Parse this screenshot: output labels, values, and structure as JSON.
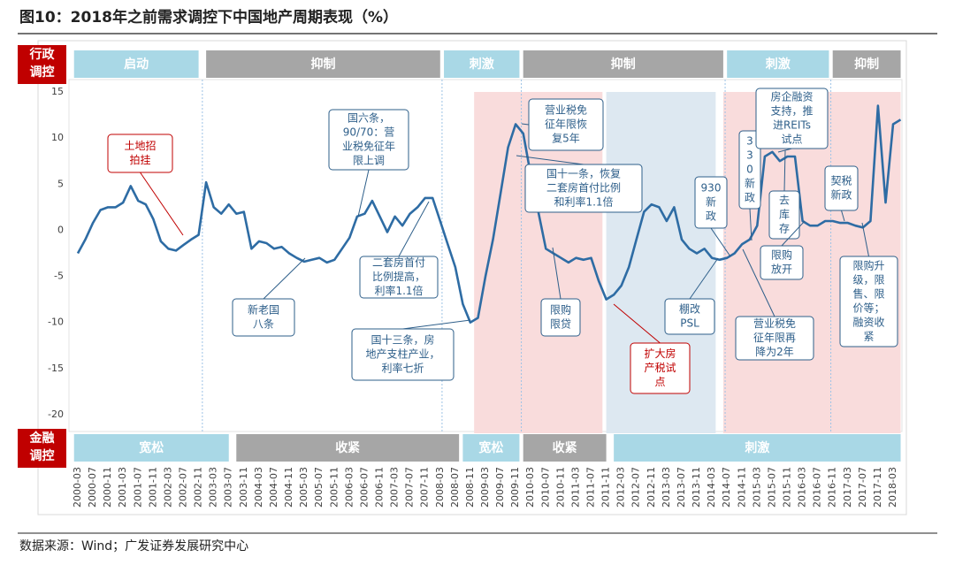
{
  "title": "图10：2018年之前需求调控下中国地产周期表现（%）",
  "source": "数据来源：Wind；广发证券发展研究中心",
  "chart_data": {
    "type": "line",
    "x": [
      "2000-03",
      "2000-05",
      "2000-07",
      "2000-09",
      "2000-11",
      "2001-01",
      "2001-03",
      "2001-05",
      "2001-07",
      "2001-09",
      "2001-11",
      "2002-01",
      "2002-03",
      "2002-05",
      "2002-07",
      "2002-09",
      "2002-11",
      "2003-01",
      "2003-03",
      "2003-05",
      "2003-07",
      "2003-09",
      "2003-11",
      "2004-01",
      "2004-03",
      "2004-05",
      "2004-07",
      "2004-09",
      "2004-11",
      "2005-01",
      "2005-03",
      "2005-05",
      "2005-07",
      "2005-09",
      "2005-11",
      "2006-01",
      "2006-03",
      "2006-05",
      "2006-07",
      "2006-09",
      "2006-11",
      "2007-01",
      "2007-03",
      "2007-05",
      "2007-07",
      "2007-09",
      "2007-11",
      "2008-01",
      "2008-03",
      "2008-05",
      "2008-07",
      "2008-09",
      "2008-11",
      "2009-01",
      "2009-03",
      "2009-05",
      "2009-07",
      "2009-09",
      "2009-11",
      "2010-01",
      "2010-03",
      "2010-05",
      "2010-07",
      "2010-09",
      "2010-11",
      "2011-01",
      "2011-03",
      "2011-05",
      "2011-07",
      "2011-09",
      "2011-11",
      "2012-01",
      "2012-03",
      "2012-05",
      "2012-07",
      "2012-09",
      "2012-11",
      "2013-01",
      "2013-03",
      "2013-05",
      "2013-07",
      "2013-09",
      "2013-11",
      "2014-01",
      "2014-03",
      "2014-05",
      "2014-07",
      "2014-09",
      "2014-11",
      "2015-01",
      "2015-03",
      "2015-05",
      "2015-07",
      "2015-09",
      "2015-11",
      "2016-01",
      "2016-03",
      "2016-05",
      "2016-07",
      "2016-09",
      "2016-11",
      "2017-01",
      "2017-03",
      "2017-05",
      "2017-07",
      "2017-09",
      "2017-11",
      "2018-01",
      "2018-03",
      "2018-05"
    ],
    "values": [
      -2.5,
      -1.0,
      0.8,
      2.2,
      2.5,
      2.5,
      3.0,
      4.8,
      3.2,
      2.8,
      1.2,
      -1.2,
      -2.0,
      -2.2,
      -1.6,
      -1.0,
      -0.5,
      5.2,
      2.5,
      1.8,
      2.8,
      1.8,
      2.0,
      -2.0,
      -1.2,
      -1.4,
      -2.0,
      -1.8,
      -2.5,
      -3.0,
      -3.4,
      -3.2,
      -3.0,
      -3.5,
      -3.2,
      -2.0,
      -0.8,
      1.5,
      1.8,
      3.2,
      1.5,
      -0.2,
      1.5,
      0.5,
      1.8,
      2.5,
      3.5,
      3.5,
      1.0,
      -1.5,
      -4.0,
      -8.0,
      -10.0,
      -9.5,
      -5.0,
      -1.0,
      4.0,
      9.0,
      11.5,
      10.5,
      6.0,
      2.0,
      -2.0,
      -2.5,
      -3.0,
      -3.5,
      -3.0,
      -3.2,
      -3.0,
      -5.5,
      -7.5,
      -7.0,
      -6.0,
      -4.0,
      -1.0,
      2.0,
      2.8,
      2.5,
      1.0,
      2.5,
      -1.0,
      -2.0,
      -2.5,
      -2.0,
      -3.0,
      -3.2,
      -3.0,
      -2.5,
      -1.5,
      -1.0,
      0.5,
      8.0,
      8.5,
      7.5,
      8.0,
      8.0,
      1.0,
      0.5,
      0.5,
      1.0,
      1.0,
      0.8,
      0.8,
      0.5,
      0.3,
      1.0,
      13.5,
      3.0,
      11.5,
      12.0
    ],
    "color": "#2e6ca4",
    "xticks": [
      "2000-03",
      "2000-07",
      "2000-11",
      "2001-03",
      "2001-07",
      "2001-11",
      "2002-03",
      "2002-07",
      "2002-11",
      "2003-03",
      "2003-07",
      "2003-11",
      "2004-03",
      "2004-07",
      "2004-11",
      "2005-03",
      "2005-07",
      "2005-11",
      "2006-03",
      "2006-07",
      "2006-11",
      "2007-03",
      "2007-07",
      "2007-11",
      "2008-03",
      "2008-07",
      "2008-11",
      "2009-03",
      "2009-07",
      "2009-11",
      "2010-03",
      "2010-07",
      "2010-11",
      "2011-03",
      "2011-07",
      "2011-11",
      "2012-03",
      "2012-07",
      "2012-11",
      "2013-03",
      "2013-07",
      "2013-11",
      "2014-03",
      "2014-07",
      "2014-11",
      "2015-03",
      "2015-07",
      "2015-11",
      "2016-03",
      "2016-07",
      "2016-11",
      "2017-03",
      "2017-07",
      "2017-11",
      "2018-03"
    ],
    "ylim": [
      -20,
      15
    ],
    "yticks": [
      15,
      10,
      5,
      0,
      -5,
      -10,
      -15,
      -20
    ],
    "shaded_periods": [
      {
        "start": "2008-12",
        "end": "2011-10",
        "color": "#f9dcdc"
      },
      {
        "start": "2011-11",
        "end": "2014-04",
        "color": "#dde8f1"
      },
      {
        "start": "2014-06",
        "end": "2018-05",
        "color": "#f9dcdc"
      }
    ],
    "policy_rows": [
      {
        "label": [
          "行政",
          "调控"
        ],
        "segments": [
          {
            "text": "启动",
            "start": "2000-02",
            "end": "2002-11",
            "color": "#a9d8e6"
          },
          {
            "text": "抑制",
            "start": "2003-01",
            "end": "2008-03",
            "color": "#a6a6a6"
          },
          {
            "text": "刺激",
            "start": "2008-04",
            "end": "2009-12",
            "color": "#a9d8e6"
          },
          {
            "text": "抑制",
            "start": "2010-01",
            "end": "2014-06",
            "color": "#a6a6a6"
          },
          {
            "text": "刺激",
            "start": "2014-07",
            "end": "2016-10",
            "color": "#a9d8e6"
          },
          {
            "text": "抑制",
            "start": "2016-11",
            "end": "2018-05",
            "color": "#a6a6a6"
          }
        ]
      },
      {
        "label": [
          "金融",
          "调控"
        ],
        "segments": [
          {
            "text": "宽松",
            "start": "2000-02",
            "end": "2003-07",
            "color": "#a9d8e6"
          },
          {
            "text": "收紧",
            "start": "2003-09",
            "end": "2008-08",
            "color": "#a6a6a6"
          },
          {
            "text": "宽松",
            "start": "2008-09",
            "end": "2009-12",
            "color": "#a9d8e6"
          },
          {
            "text": "收紧",
            "start": "2010-01",
            "end": "2011-11",
            "color": "#a6a6a6"
          },
          {
            "text": "刺激",
            "start": "2012-01",
            "end": "2018-05",
            "color": "#a9d8e6"
          }
        ]
      }
    ],
    "annotations": [
      {
        "lines": [
          "土地招",
          "拍挂"
        ],
        "color": "#c00000"
      },
      {
        "lines": [
          "新老国",
          "八条"
        ],
        "color": "#2e5f8a"
      },
      {
        "lines": [
          "国六条，",
          "90/70：营",
          "业税免征年",
          "限上调"
        ],
        "color": "#2e5f8a"
      },
      {
        "lines": [
          "二套房首付",
          "比例提高，",
          "利率1.1倍"
        ],
        "color": "#2e5f8a"
      },
      {
        "lines": [
          "国十三条，房",
          "地产支柱产业，",
          "利率七折"
        ],
        "color": "#2e5f8a"
      },
      {
        "lines": [
          "营业税免",
          "征年限恢",
          "复5年"
        ],
        "color": "#2e5f8a"
      },
      {
        "lines": [
          "国十一条，恢复",
          "二套房首付比例",
          "和利率1.1倍"
        ],
        "color": "#2e5f8a"
      },
      {
        "lines": [
          "限购",
          "限贷"
        ],
        "color": "#2e5f8a"
      },
      {
        "lines": [
          "扩大房",
          "产税试",
          "点"
        ],
        "color": "#c00000"
      },
      {
        "lines": [
          "930",
          "新",
          "政"
        ],
        "color": "#2e5f8a"
      },
      {
        "lines": [
          "棚改",
          "PSL"
        ],
        "color": "#2e5f8a"
      },
      {
        "lines": [
          "3",
          "3",
          "0",
          "新",
          "政"
        ],
        "color": "#2e5f8a"
      },
      {
        "lines": [
          "营业税免",
          "征年限再",
          "降为2年"
        ],
        "color": "#2e5f8a"
      },
      {
        "lines": [
          "房企融资",
          "支持，推",
          "进REITs",
          "试点"
        ],
        "color": "#2e5f8a"
      },
      {
        "lines": [
          "去",
          "库",
          "存"
        ],
        "color": "#2e5f8a"
      },
      {
        "lines": [
          "限购",
          "放开"
        ],
        "color": "#2e5f8a"
      },
      {
        "lines": [
          "契税",
          "新政"
        ],
        "color": "#2e5f8a"
      },
      {
        "lines": [
          "限购升",
          "级，限",
          "售、限",
          "价等；",
          "融资收",
          "紧"
        ],
        "color": "#2e5f8a"
      }
    ]
  }
}
